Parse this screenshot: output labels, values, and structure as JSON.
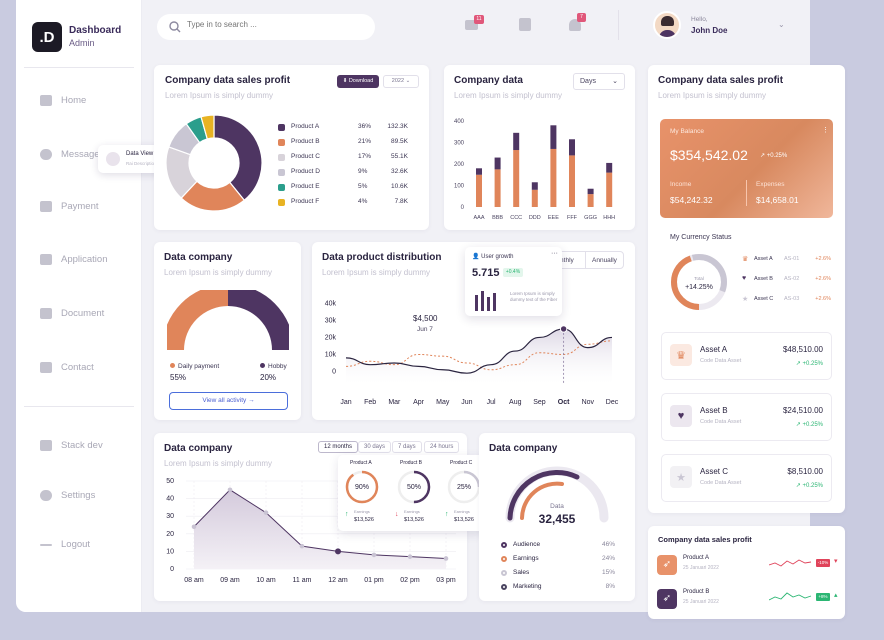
{
  "brand": {
    "logo": ".D",
    "title": "Dashboard",
    "subtitle": "Admin"
  },
  "nav": [
    {
      "label": "Home",
      "icon": "home-icon"
    },
    {
      "label": "Message",
      "icon": "message-icon"
    },
    {
      "label": "Payment",
      "icon": "payment-icon"
    },
    {
      "label": "Application",
      "icon": "application-icon"
    },
    {
      "label": "Document",
      "icon": "document-icon"
    },
    {
      "label": "Contact",
      "icon": "contact-icon"
    },
    {
      "label": "Stack dev",
      "icon": "stack-icon"
    },
    {
      "label": "Settings",
      "icon": "settings-icon"
    },
    {
      "label": "Logout",
      "icon": "logout-icon"
    }
  ],
  "tooltip": {
    "title": "Data View",
    "sub": "Rai Description"
  },
  "topbar": {
    "search_placeholder": "Type in to search ...",
    "mail_badge": "11",
    "bell_badge": "7",
    "hello": "Hello,",
    "user": "John Doe"
  },
  "card1": {
    "title": "Company data sales profit",
    "subtitle": "Lorem Ipsum is simply dummy",
    "download": "Download",
    "year": "2022"
  },
  "card2": {
    "title": "Company data",
    "subtitle": "Lorem Ipsum is simply dummy",
    "period": "Days"
  },
  "card3": {
    "title": "Data company",
    "subtitle": "Lorem Ipsum is simply dummy",
    "legend1": "Daily payment",
    "value1": "55%",
    "legend2": "Hobby",
    "value2": "20%",
    "link": "View all activity →"
  },
  "card4": {
    "title": "Data product distribution",
    "subtitle": "Lorem Ipsum is simply dummy",
    "tab1": "Monthly",
    "tab2": "Annually",
    "annotation_value": "$4,500",
    "annotation_date": "Jun 7"
  },
  "growth": {
    "title": "User growth",
    "value": "5.715",
    "badge": "+0.4%",
    "desc": "Lorem Ipsum is simply dummy text of the Fiber"
  },
  "card5": {
    "title": "Data company",
    "subtitle": "Lorem Ipsum is simply dummy",
    "tabs": [
      "12 months",
      "30 days",
      "7 days",
      "24 hours"
    ]
  },
  "products": [
    {
      "name": "Product A",
      "pct": "90%",
      "label": "Earnings",
      "value": "$13,526",
      "color": "#e0855a",
      "trend": "up"
    },
    {
      "name": "Product B",
      "pct": "50%",
      "label": "Earnings",
      "value": "$13,526",
      "color": "#4e3562",
      "trend": "down"
    },
    {
      "name": "Product C",
      "pct": "25%",
      "label": "Earnings",
      "value": "$13,526",
      "color": "#c9c6d3",
      "trend": "up"
    }
  ],
  "card6": {
    "title": "Data company",
    "gauge_label": "Data",
    "gauge_value": "32,455",
    "items": [
      {
        "name": "Audience",
        "pct": "46%",
        "color": "#4e3562"
      },
      {
        "name": "Earnings",
        "pct": "24%",
        "color": "#e0855a"
      },
      {
        "name": "Sales",
        "pct": "15%",
        "color": "#c9c6d3"
      },
      {
        "name": "Marketing",
        "pct": "8%",
        "color": "#4a4460"
      }
    ]
  },
  "right": {
    "title": "Company data sales profit",
    "subtitle": "Lorem Ipsum is simply dummy",
    "balance_label": "My Balance",
    "balance": "$354,542.02",
    "balance_change": "+0.25%",
    "income_label": "Income",
    "income": "$54,242.32",
    "expenses_label": "Expenses",
    "expenses": "$14,658.01",
    "currency_title": "My Currency Status",
    "currency_total_label": "Total",
    "currency_total": "+14.25%",
    "currency": [
      {
        "name": "Asset A",
        "code": "AS-01",
        "pct": "+2.6%"
      },
      {
        "name": "Asset B",
        "code": "AS-02",
        "pct": "+2.6%"
      },
      {
        "name": "Asset C",
        "code": "AS-03",
        "pct": "+2.6%"
      }
    ],
    "assets": [
      {
        "name": "Asset A",
        "sub": "Code Data Asset",
        "value": "$48,510.00",
        "change": "+0.25%"
      },
      {
        "name": "Asset B",
        "sub": "Code Data Asset",
        "value": "$24,510.00",
        "change": "+0.25%"
      },
      {
        "name": "Asset C",
        "sub": "Code Data Asset",
        "value": "$8,510.00",
        "change": "+0.25%"
      }
    ]
  },
  "bottom_right": {
    "title": "Company data sales profit",
    "items": [
      {
        "name": "Product A",
        "date": "25 Januari 2022",
        "badge": "-10%",
        "badge_color": "#e0435a"
      },
      {
        "name": "Product B",
        "date": "25 Januari 2022",
        "badge": "+8%",
        "badge_color": "#2bb673"
      }
    ]
  },
  "chart_data": [
    {
      "type": "pie",
      "title": "Company data sales profit",
      "categories": [
        "Product A",
        "Product B",
        "Product C",
        "Product D",
        "Product E",
        "Product F"
      ],
      "percents": [
        "36%",
        "21%",
        "17%",
        "9%",
        "5%",
        "4%"
      ],
      "values": [
        "132.3K",
        "89.5K",
        "55.1K",
        "32.6K",
        "10.6K",
        "7.8K"
      ],
      "pct_num": [
        36,
        21,
        17,
        9,
        5,
        4
      ],
      "colors": [
        "#4e3562",
        "#e0855a",
        "#d8d3da",
        "#c9c6d3",
        "#2b9e8c",
        "#e8b323"
      ]
    },
    {
      "type": "bar",
      "title": "Company data",
      "categories": [
        "AAA",
        "BBB",
        "CCC",
        "DDD",
        "EEE",
        "FFF",
        "GGG",
        "HHH"
      ],
      "series": [
        {
          "values": [
            150,
            175,
            265,
            80,
            270,
            240,
            60,
            160
          ]
        },
        {
          "values": [
            30,
            55,
            80,
            35,
            110,
            75,
            25,
            45
          ]
        }
      ],
      "ylim": [
        0,
        400
      ],
      "yticks": [
        "0",
        "100",
        "200",
        "300",
        "400"
      ],
      "colors": [
        "#e0855a",
        "#4e3562"
      ]
    },
    {
      "type": "line",
      "title": "Data product distribution",
      "categories": [
        "Jan",
        "Feb",
        "Mar",
        "Apr",
        "May",
        "Jun",
        "Jul",
        "Aug",
        "Sep",
        "Oct",
        "Nov",
        "Dec"
      ],
      "series": [
        {
          "values": [
            8,
            4,
            5,
            3,
            1,
            -1,
            4,
            12,
            20,
            25,
            14,
            20
          ]
        },
        {
          "values": [
            3,
            6,
            4,
            10,
            9,
            5,
            1,
            4,
            11,
            10,
            16,
            18
          ]
        }
      ],
      "ylim": [
        -5,
        42
      ],
      "yticks": [
        "0",
        "10k",
        "20k",
        "30k",
        "40k"
      ],
      "colors": [
        "#2b2540",
        "#e0855a"
      ]
    },
    {
      "type": "area",
      "title": "Data company",
      "categories": [
        "08 am",
        "09 am",
        "10 am",
        "11 am",
        "12 am",
        "01 pm",
        "02 pm",
        "03 pm"
      ],
      "values": [
        24,
        45,
        32,
        13,
        10,
        8,
        7,
        6
      ],
      "ylim": [
        0,
        50
      ],
      "yticks": [
        "0",
        "10",
        "20",
        "30",
        "40",
        "50"
      ],
      "colors": [
        "#4e3562"
      ]
    }
  ]
}
